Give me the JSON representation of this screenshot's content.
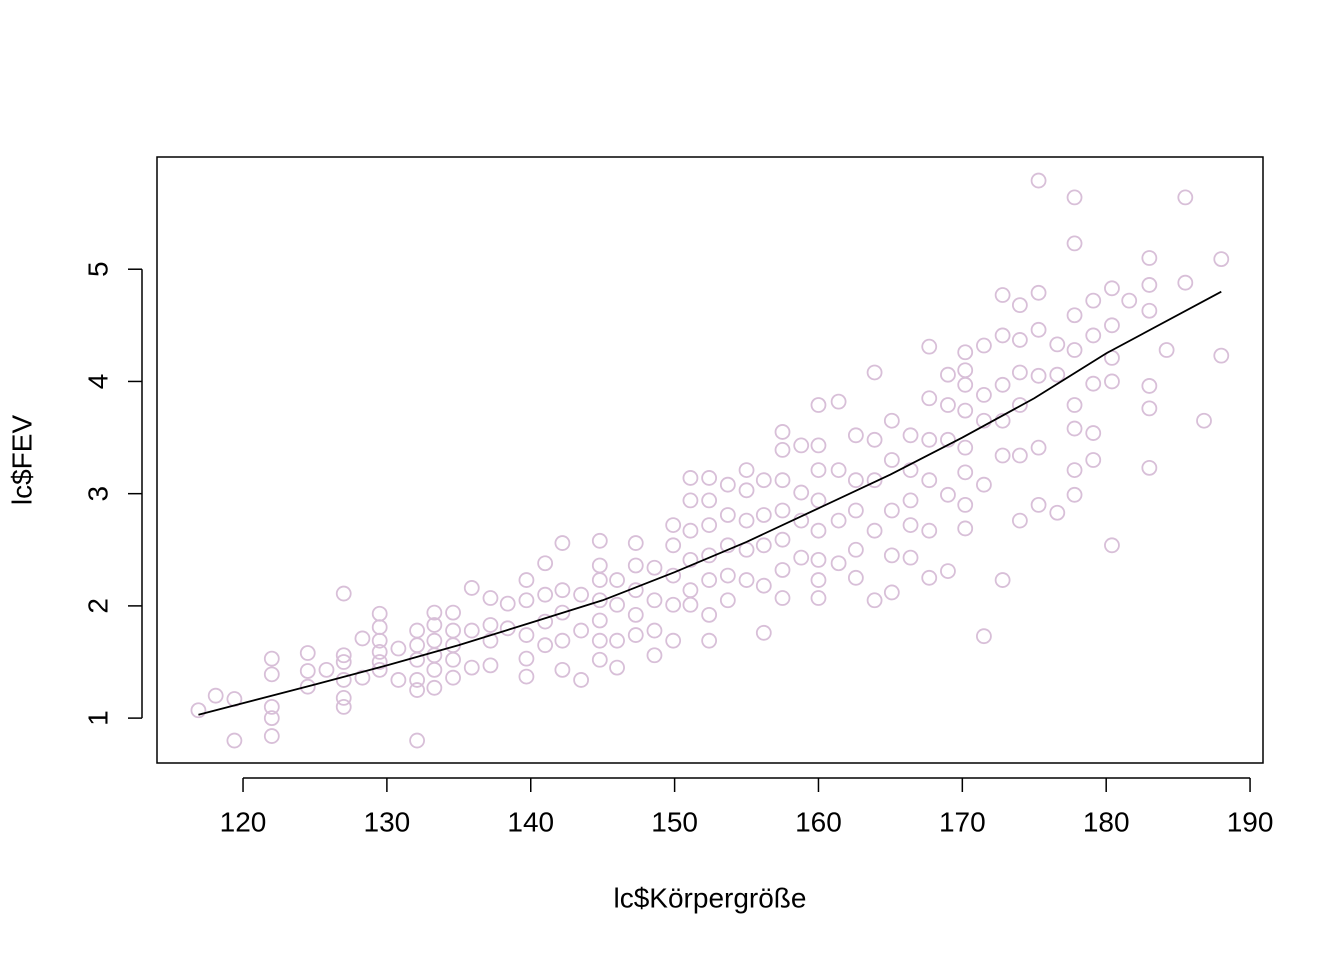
{
  "chart_data": {
    "type": "scatter",
    "xlabel": "lc$Körpergröße",
    "ylabel": "lc$FEV",
    "xlim": [
      114.02,
      190.9
    ],
    "ylim": [
      0.6,
      6.0
    ],
    "xticks": [
      120,
      130,
      140,
      150,
      160,
      170,
      180,
      190
    ],
    "yticks": [
      1,
      2,
      3,
      4,
      5
    ],
    "points": {
      "color": "#d8bfd8",
      "x": [
        116.9,
        118.1,
        119.4,
        119.4,
        122,
        122,
        122,
        122,
        122,
        124.5,
        124.5,
        124.5,
        125.8,
        127,
        127,
        127,
        127,
        127,
        127,
        128.3,
        128.3,
        129.5,
        129.5,
        129.5,
        129.5,
        129.5,
        129.5,
        130.8,
        130.8,
        132.1,
        132.1,
        132.1,
        132.1,
        132.1,
        132.1,
        133.3,
        133.3,
        133.3,
        133.3,
        133.3,
        133.3,
        134.6,
        134.6,
        134.6,
        134.6,
        134.6,
        135.9,
        135.9,
        135.9,
        137.2,
        137.2,
        137.2,
        137.2,
        138.4,
        138.4,
        139.7,
        139.7,
        139.7,
        139.7,
        139.7,
        141,
        141,
        141,
        141,
        142.2,
        142.2,
        142.2,
        142.2,
        142.2,
        143.5,
        143.5,
        143.5,
        144.8,
        144.8,
        144.8,
        144.8,
        144.8,
        144.8,
        144.8,
        146,
        146,
        146,
        146,
        147.3,
        147.3,
        147.3,
        147.3,
        147.3,
        148.6,
        148.6,
        148.6,
        148.6,
        149.9,
        149.9,
        149.9,
        149.9,
        149.9,
        151.1,
        151.1,
        151.1,
        151.1,
        151.1,
        151.1,
        152.4,
        152.4,
        152.4,
        152.4,
        152.4,
        152.4,
        152.4,
        153.7,
        153.7,
        153.7,
        153.7,
        153.7,
        155,
        155,
        155,
        155,
        155,
        156.2,
        156.2,
        156.2,
        156.2,
        156.2,
        157.5,
        157.5,
        157.5,
        157.5,
        157.5,
        157.5,
        157.5,
        158.8,
        158.8,
        158.8,
        158.8,
        160,
        160,
        160,
        160,
        160,
        160,
        160,
        160,
        161.4,
        161.4,
        161.4,
        161.4,
        162.6,
        162.6,
        162.6,
        162.6,
        162.6,
        163.9,
        163.9,
        163.9,
        163.9,
        163.9,
        165.1,
        165.1,
        165.1,
        165.1,
        165.1,
        166.4,
        166.4,
        166.4,
        166.4,
        166.4,
        167.7,
        167.7,
        167.7,
        167.7,
        167.7,
        167.7,
        169,
        169,
        169,
        169,
        169,
        170.2,
        170.2,
        170.2,
        170.2,
        170.2,
        170.2,
        170.2,
        170.2,
        171.5,
        171.5,
        171.5,
        171.5,
        171.5,
        172.8,
        172.8,
        172.8,
        172.8,
        172.8,
        172.8,
        174,
        174,
        174,
        174,
        174,
        174,
        175.3,
        175.3,
        175.3,
        175.3,
        175.3,
        175.3,
        176.6,
        176.6,
        176.6,
        177.8,
        177.8,
        177.8,
        177.8,
        177.8,
        177.8,
        177.8,
        177.8,
        179.1,
        179.1,
        179.1,
        179.1,
        179.1,
        180.4,
        180.4,
        180.4,
        180.4,
        180.4,
        181.6,
        183,
        183,
        183,
        183,
        183,
        183,
        184.2,
        185.5,
        185.5,
        186.8,
        188,
        188
      ],
      "y": [
        1.07,
        1.2,
        1.17,
        0.8,
        1.53,
        1.39,
        1.1,
        1.0,
        0.84,
        1.58,
        1.42,
        1.28,
        1.43,
        2.11,
        1.56,
        1.5,
        1.34,
        1.18,
        1.1,
        1.71,
        1.36,
        1.93,
        1.81,
        1.69,
        1.59,
        1.5,
        1.43,
        1.62,
        1.34,
        1.78,
        1.65,
        1.52,
        1.34,
        1.25,
        0.8,
        1.94,
        1.83,
        1.69,
        1.56,
        1.43,
        1.27,
        1.94,
        1.78,
        1.65,
        1.52,
        1.36,
        2.16,
        1.78,
        1.45,
        2.07,
        1.83,
        1.69,
        1.47,
        2.02,
        1.8,
        2.23,
        2.05,
        1.74,
        1.53,
        1.37,
        2.38,
        2.1,
        1.86,
        1.65,
        2.56,
        2.14,
        1.94,
        1.69,
        1.43,
        2.1,
        1.78,
        1.34,
        2.58,
        2.36,
        2.23,
        2.05,
        1.87,
        1.69,
        1.52,
        2.23,
        2.01,
        1.69,
        1.45,
        2.56,
        2.36,
        2.14,
        1.92,
        1.74,
        2.34,
        2.05,
        1.78,
        1.56,
        2.72,
        2.54,
        2.27,
        2.01,
        1.69,
        3.14,
        2.94,
        2.67,
        2.41,
        2.14,
        2.01,
        3.14,
        2.94,
        2.72,
        2.45,
        2.23,
        1.92,
        1.69,
        3.08,
        2.81,
        2.54,
        2.27,
        2.05,
        3.21,
        3.03,
        2.76,
        2.5,
        2.23,
        3.12,
        2.81,
        2.54,
        2.18,
        1.76,
        3.55,
        3.39,
        3.12,
        2.85,
        2.59,
        2.32,
        2.07,
        3.43,
        3.01,
        2.76,
        2.43,
        3.79,
        3.43,
        3.21,
        2.94,
        2.67,
        2.41,
        2.23,
        2.07,
        3.82,
        3.21,
        2.76,
        2.38,
        3.52,
        3.12,
        2.85,
        2.5,
        2.25,
        4.08,
        3.48,
        3.12,
        2.67,
        2.05,
        3.65,
        3.3,
        2.85,
        2.45,
        2.12,
        3.52,
        3.21,
        2.94,
        2.72,
        2.43,
        4.31,
        3.85,
        3.48,
        3.12,
        2.67,
        2.25,
        4.06,
        3.79,
        3.48,
        2.99,
        2.31,
        4.26,
        4.1,
        3.97,
        3.74,
        3.41,
        3.19,
        2.9,
        2.69,
        4.32,
        3.88,
        3.65,
        3.08,
        1.73,
        4.77,
        4.41,
        3.97,
        3.65,
        3.34,
        2.23,
        4.68,
        4.37,
        4.08,
        3.79,
        3.34,
        2.76,
        5.79,
        4.79,
        4.46,
        4.05,
        3.41,
        2.9,
        4.33,
        4.06,
        2.83,
        5.64,
        5.23,
        4.59,
        4.28,
        3.79,
        3.58,
        3.21,
        2.99,
        4.72,
        4.41,
        3.98,
        3.54,
        3.3,
        4.83,
        4.5,
        4.21,
        4.0,
        2.54,
        4.72,
        5.1,
        4.86,
        4.63,
        3.96,
        3.76,
        3.23,
        4.28,
        5.64,
        4.88,
        3.65,
        5.09,
        4.23
      ]
    },
    "line": {
      "color": "#000000",
      "x": [
        116.9,
        125,
        130,
        135,
        140,
        145,
        150,
        155,
        160,
        165,
        170,
        175,
        180,
        188
      ],
      "y": [
        1.03,
        1.3,
        1.47,
        1.65,
        1.85,
        2.05,
        2.3,
        2.57,
        2.87,
        3.17,
        3.5,
        3.85,
        4.25,
        4.8
      ]
    }
  }
}
